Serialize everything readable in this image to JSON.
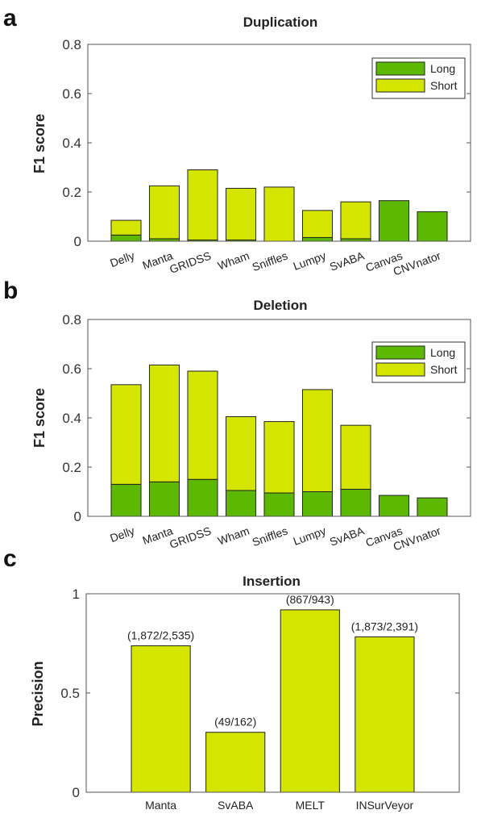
{
  "colors": {
    "long": "#5cb800",
    "short": "#d4e600",
    "bar_edge": "#222222",
    "axis": "#555555"
  },
  "chart_data": [
    {
      "panel": "a",
      "type": "bar",
      "stacked": true,
      "title": "Duplication",
      "ylabel": "F1 score",
      "ylim": [
        0,
        0.8
      ],
      "yticks": [
        "0",
        "0.2",
        "0.4",
        "0.6",
        "0.8"
      ],
      "legend": {
        "position": "top-right",
        "entries": [
          "Long",
          "Short"
        ]
      },
      "categories": [
        "Delly",
        "Manta",
        "GRIDSS",
        "Wham",
        "Sniffles",
        "Lumpy",
        "SvABA",
        "Canvas",
        "CNVnator"
      ],
      "series": [
        {
          "name": "Long",
          "values": [
            0.025,
            0.01,
            0.005,
            0.005,
            0.0,
            0.015,
            0.01,
            0.165,
            0.12
          ]
        },
        {
          "name": "Short",
          "values": [
            0.06,
            0.215,
            0.285,
            0.21,
            0.22,
            0.11,
            0.15,
            0.0,
            0.0
          ]
        }
      ],
      "totals": [
        0.085,
        0.225,
        0.29,
        0.215,
        0.22,
        0.125,
        0.16,
        0.165,
        0.12
      ]
    },
    {
      "panel": "b",
      "type": "bar",
      "stacked": true,
      "title": "Deletion",
      "ylabel": "F1 score",
      "ylim": [
        0,
        0.8
      ],
      "yticks": [
        "0",
        "0.2",
        "0.4",
        "0.6",
        "0.8"
      ],
      "legend": {
        "position": "top-right",
        "entries": [
          "Long",
          "Short"
        ]
      },
      "categories": [
        "Delly",
        "Manta",
        "GRIDSS",
        "Wham",
        "Sniffles",
        "Lumpy",
        "SvABA",
        "Canvas",
        "CNVnator"
      ],
      "series": [
        {
          "name": "Long",
          "values": [
            0.13,
            0.14,
            0.15,
            0.105,
            0.095,
            0.1,
            0.11,
            0.085,
            0.075
          ]
        },
        {
          "name": "Short",
          "values": [
            0.405,
            0.475,
            0.44,
            0.3,
            0.29,
            0.415,
            0.26,
            0.0,
            0.0
          ]
        }
      ],
      "totals": [
        0.535,
        0.615,
        0.59,
        0.405,
        0.385,
        0.515,
        0.37,
        0.085,
        0.075
      ]
    },
    {
      "panel": "c",
      "type": "bar",
      "title": "Insertion",
      "ylabel": "Precision",
      "ylim": [
        0,
        1
      ],
      "yticks": [
        "0",
        "0.5",
        "1"
      ],
      "categories": [
        "Manta",
        "SvABA",
        "MELT",
        "INSurVeyor"
      ],
      "values": [
        0.738,
        0.302,
        0.919,
        0.783
      ],
      "data_labels": [
        "(1,872/2,535)",
        "(49/162)",
        "(867/943)",
        "(1,873/2,391)"
      ]
    }
  ]
}
